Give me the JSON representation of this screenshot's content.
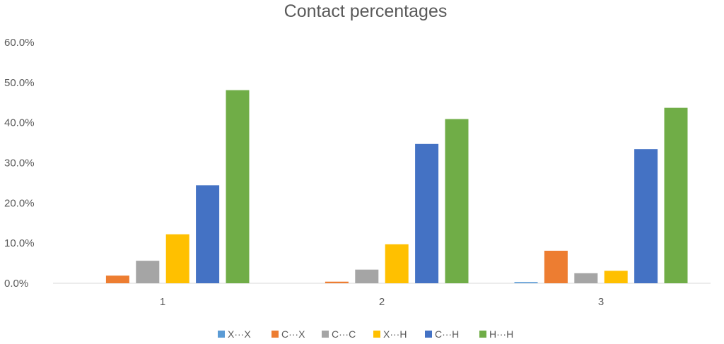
{
  "chart_data": {
    "type": "bar",
    "title": "Contact percentages",
    "categories": [
      "1",
      "2",
      "3"
    ],
    "ylim": [
      0,
      60
    ],
    "yticks": [
      "0.0%",
      "10.0%",
      "20.0%",
      "30.0%",
      "40.0%",
      "50.0%",
      "60.0%"
    ],
    "ytick_values": [
      0,
      10,
      20,
      30,
      40,
      50,
      60
    ],
    "grid": false,
    "legend_position": "bottom",
    "series": [
      {
        "name": "X···X",
        "color": "#5B9BD5",
        "values": [
          0.0,
          0.0,
          0.3
        ]
      },
      {
        "name": "C···X",
        "color": "#ED7D31",
        "values": [
          1.9,
          0.4,
          8.1
        ]
      },
      {
        "name": "C···C",
        "color": "#A5A5A5",
        "values": [
          5.6,
          3.4,
          2.5
        ]
      },
      {
        "name": "X···H",
        "color": "#FFC000",
        "values": [
          12.2,
          9.7,
          3.1
        ]
      },
      {
        "name": "C···H",
        "color": "#4472C4",
        "values": [
          24.4,
          34.7,
          33.4
        ]
      },
      {
        "name": "H···H",
        "color": "#70AD47",
        "values": [
          48.1,
          40.9,
          43.7
        ]
      }
    ]
  }
}
